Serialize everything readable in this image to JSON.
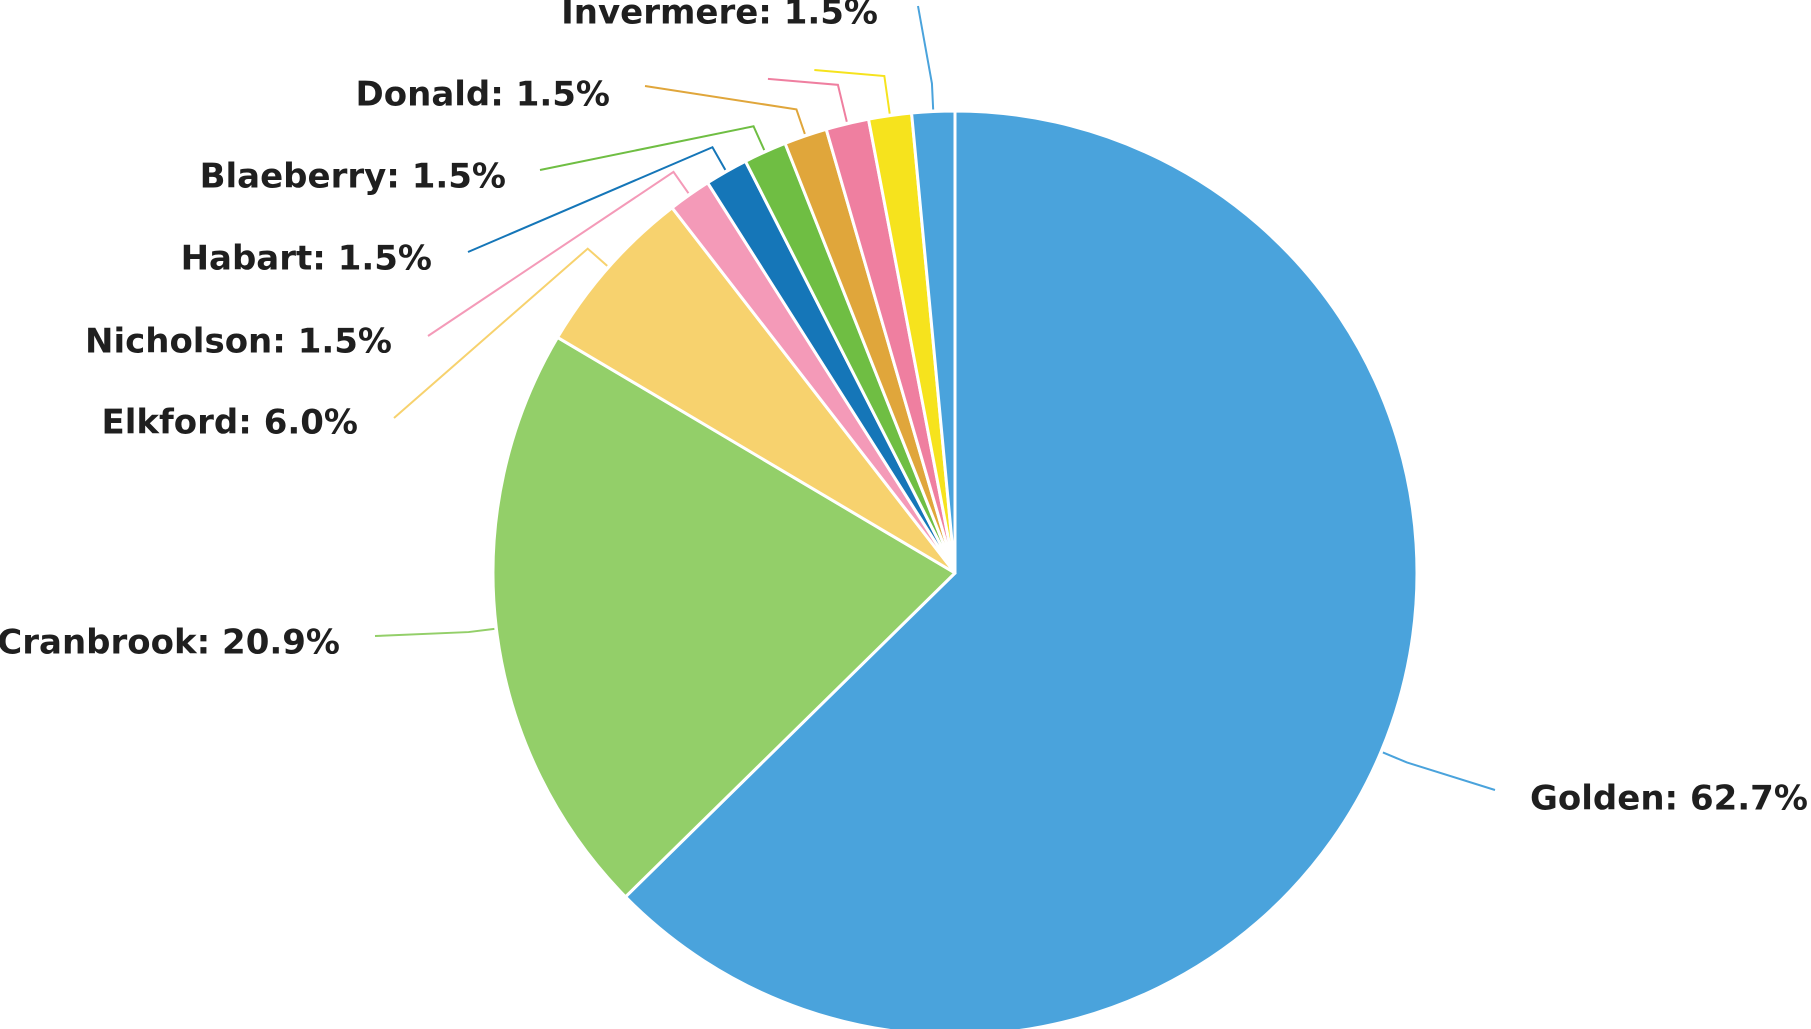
{
  "chart_data": {
    "type": "pie",
    "slices": [
      {
        "label": "Golden: 62.7%",
        "name": "Golden",
        "value": 62.7,
        "color": "#4aa3dc"
      },
      {
        "label": "Cranbrook: 20.9%",
        "name": "Cranbrook",
        "value": 20.9,
        "color": "#93cf69"
      },
      {
        "label": "Elkford: 6.0%",
        "name": "Elkford",
        "value": 6.0,
        "color": "#f7d26e"
      },
      {
        "label": "Nicholson: 1.5%",
        "name": "Nicholson",
        "value": 1.5,
        "color": "#f49ab8"
      },
      {
        "label": "Habart: 1.5%",
        "name": "Habart",
        "value": 1.5,
        "color": "#1576b8"
      },
      {
        "label": "Blaeberry: 1.5%",
        "name": "Blaeberry",
        "value": 1.5,
        "color": "#6fbe43"
      },
      {
        "label": "Donald: 1.5%",
        "name": "Donald",
        "value": 1.5,
        "color": "#e0a63b"
      },
      {
        "label": "",
        "name": "",
        "value": 1.5,
        "color": "#ef7fa0"
      },
      {
        "label": "",
        "name": "",
        "value": 1.5,
        "color": "#f6e31d"
      },
      {
        "label": "Invermere: 1.5%",
        "name": "Invermere",
        "value": 1.5,
        "color": "#4aa3dc"
      }
    ],
    "note_last_slice_order": "slices listed clockwise from the top; the small slices are labelled along the upper left"
  }
}
